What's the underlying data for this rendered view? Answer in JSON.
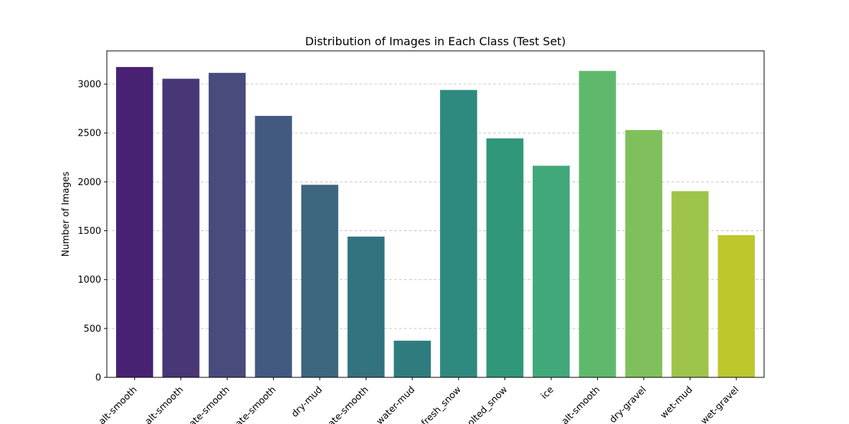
{
  "chart_data": {
    "type": "bar",
    "title": "Distribution of Images in Each Class (Test Set)",
    "xlabel": "",
    "ylabel": "Number of Images",
    "categories": [
      "alt-smooth",
      "alt-smooth",
      "ate-smooth",
      "ate-smooth",
      "dry-mud",
      "ate-smooth",
      "water-mud",
      "fresh_snow",
      "olted_snow",
      "ice",
      "alt-smooth",
      "dry-gravel",
      "wet-mud",
      "wet-gravel"
    ],
    "values": [
      3175,
      3055,
      3115,
      2675,
      1970,
      1440,
      375,
      2940,
      2445,
      2165,
      3135,
      2530,
      1905,
      1455
    ],
    "colors": [
      "#482173",
      "#483677",
      "#484b7c",
      "#425a82",
      "#3c677e",
      "#33727f",
      "#2f7c7f",
      "#2e8a7e",
      "#30977a",
      "#41a87a",
      "#5fb96d",
      "#80c05c",
      "#9ec44b",
      "#bfc72f"
    ],
    "ylim": [
      0,
      3340
    ],
    "yticks": [
      0,
      500,
      1000,
      1500,
      2000,
      2500,
      3000
    ],
    "grid": "y-dashed"
  }
}
